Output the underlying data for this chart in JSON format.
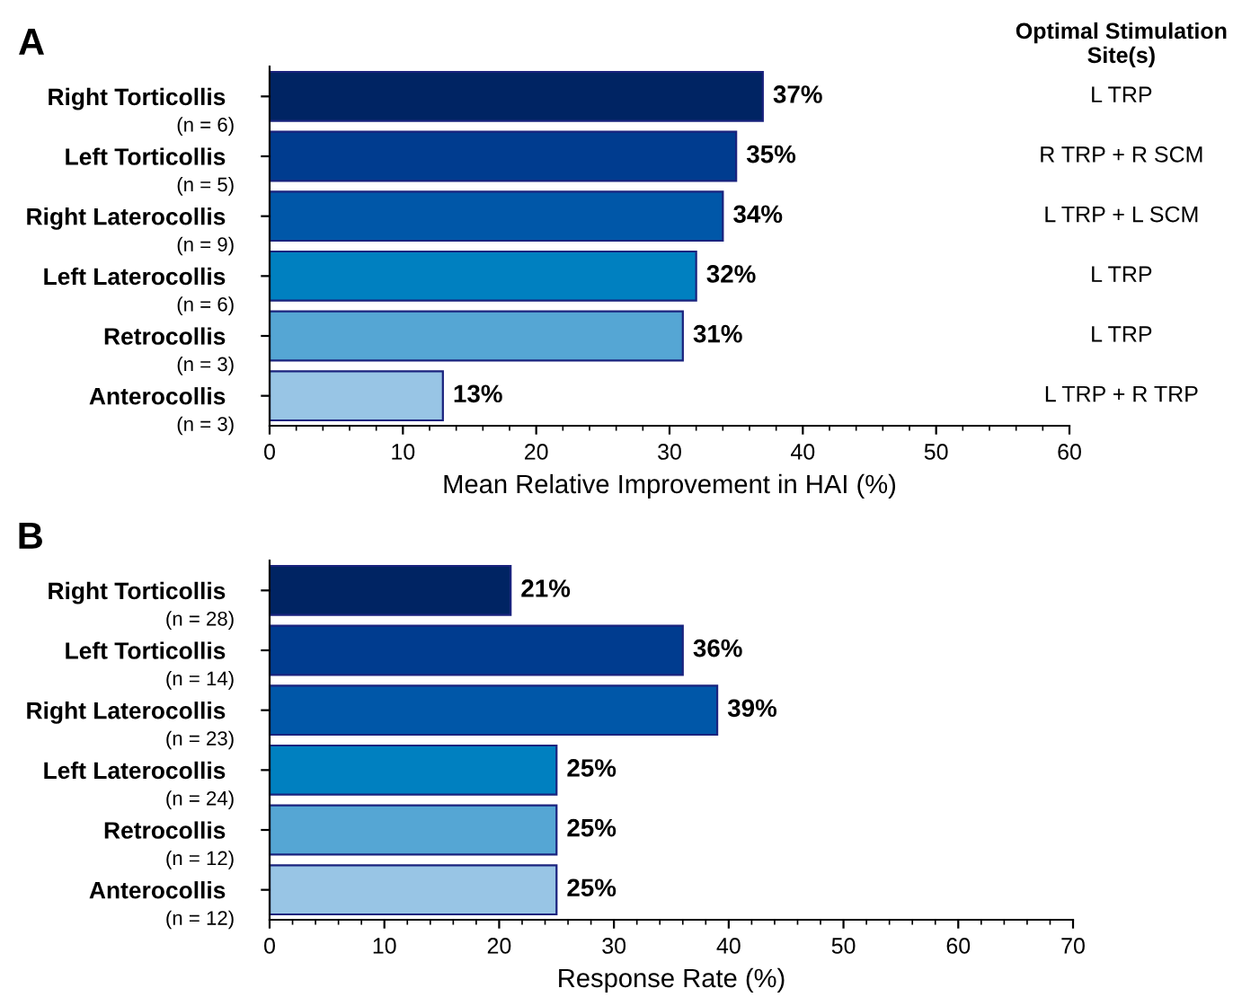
{
  "chart_data": [
    {
      "type": "bar",
      "orientation": "horizontal",
      "title": "A",
      "xlabel": "Mean Relative Improvement in HAI (%)",
      "categories": [
        "Right Torticollis\n(n = 6)",
        "Left Torticollis\n(n = 5)",
        "Right Laterocollis\n(n = 9)",
        "Left Laterocollis\n(n = 6)",
        "Retrocollis\n(n = 3)",
        "Anterocollis\n(n = 3)"
      ],
      "values": [
        37,
        35,
        34,
        32,
        31,
        13
      ],
      "value_labels": [
        "37%",
        "35%",
        "34%",
        "32%",
        "31%",
        "13%"
      ],
      "colors": [
        "#002463",
        "#003c8f",
        "#0057a8",
        "#0080c0",
        "#55a6d4",
        "#98c5e5"
      ],
      "xlim": [
        0,
        60
      ],
      "xticks": [
        0,
        10,
        20,
        30,
        40,
        50,
        60
      ],
      "grid": false,
      "legend": false,
      "annotations": [
        "Optimal Stimulation\nSite(s)",
        "L TRP",
        "R TRP + R SCM",
        "L TRP + L SCM",
        "L TRP",
        "L TRP",
        "L TRP + R TRP"
      ]
    },
    {
      "type": "bar",
      "orientation": "horizontal",
      "title": "B",
      "xlabel": "Response Rate (%)",
      "categories": [
        "Right Torticollis\n(n = 28)",
        "Left Torticollis\n(n = 14)",
        "Right Laterocollis\n(n = 23)",
        "Left Laterocollis\n(n = 24)",
        "Retrocollis\n(n = 12)",
        "Anterocollis\n(n = 12)"
      ],
      "values": [
        21,
        36,
        39,
        25,
        25,
        25
      ],
      "value_labels": [
        "21%",
        "36%",
        "39%",
        "25%",
        "25%",
        "25%"
      ],
      "colors": [
        "#002463",
        "#003c8f",
        "#0057a8",
        "#0080c0",
        "#55a6d4",
        "#98c5e5"
      ],
      "xlim": [
        0,
        70
      ],
      "xticks": [
        0,
        10,
        20,
        30,
        40,
        50,
        60,
        70
      ],
      "grid": false,
      "legend": false
    }
  ]
}
